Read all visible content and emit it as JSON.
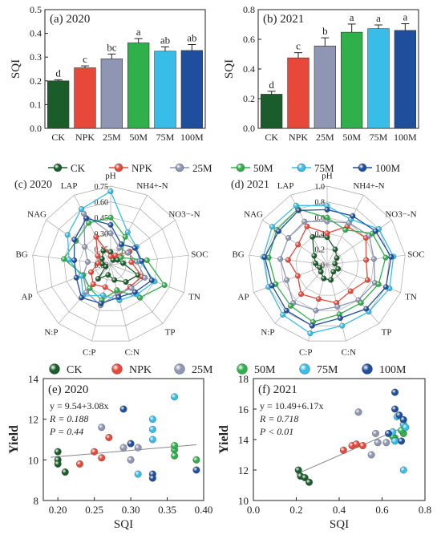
{
  "chart_data": [
    {
      "panel_label": "(a) 2020",
      "type": "bar",
      "ylabel": "SQI",
      "ylim": [
        0.0,
        0.5
      ],
      "yticks": [
        "0.0",
        "0.1",
        "0.2",
        "0.3",
        "0.4",
        "0.5"
      ],
      "categories": [
        "CK",
        "NPK",
        "25M",
        "50M",
        "75M",
        "100M"
      ],
      "values": [
        0.2,
        0.255,
        0.293,
        0.36,
        0.325,
        0.328
      ],
      "errors": [
        0.004,
        0.008,
        0.02,
        0.018,
        0.018,
        0.025
      ],
      "letters": [
        "d",
        "c",
        "bc",
        "a",
        "ab",
        "ab"
      ],
      "colors": [
        "#1a5c2a",
        "#e8483a",
        "#8e96b4",
        "#2fb04a",
        "#38bde8",
        "#1f4e9c"
      ]
    },
    {
      "panel_label": "(b) 2021",
      "type": "bar",
      "ylabel": "SQI",
      "ylim": [
        0.0,
        0.8
      ],
      "yticks": [
        "0.0",
        "0.2",
        "0.4",
        "0.6",
        "0.8"
      ],
      "categories": [
        "CK",
        "NPK",
        "25M",
        "50M",
        "75M",
        "100M"
      ],
      "values": [
        0.23,
        0.475,
        0.555,
        0.648,
        0.672,
        0.66
      ],
      "errors": [
        0.02,
        0.035,
        0.055,
        0.055,
        0.025,
        0.045
      ],
      "letters": [
        "d",
        "c",
        "b",
        "a",
        "a",
        "a"
      ],
      "colors": [
        "#1a5c2a",
        "#e8483a",
        "#8e96b4",
        "#2fb04a",
        "#38bde8",
        "#1f4e9c"
      ]
    },
    {
      "panel_label": "(c) 2020",
      "type": "radar",
      "axes": [
        "pH",
        "NH4+-N",
        "NO3−-N",
        "SOC",
        "TN",
        "TP",
        "C:N",
        "C:P",
        "N:P",
        "AP",
        "BG",
        "NAG",
        "LAP"
      ],
      "rlim": [
        0.0,
        0.75
      ],
      "rticks": [
        "0.00",
        "0.15",
        "0.30",
        "0.45",
        "0.60",
        "0.75"
      ],
      "series": [
        {
          "name": "CK",
          "color": "#1a5c2a",
          "values": [
            0.12,
            0.05,
            0.08,
            0.12,
            0.28,
            0.22,
            0.15,
            0.1,
            0.18,
            0.05,
            0.08,
            0.1,
            0.15
          ]
        },
        {
          "name": "NPK",
          "color": "#e8483a",
          "values": [
            0.08,
            0.1,
            0.22,
            0.2,
            0.32,
            0.28,
            0.3,
            0.22,
            0.25,
            0.2,
            0.12,
            0.15,
            0.3
          ]
        },
        {
          "name": "25M",
          "color": "#8e96b4",
          "values": [
            0.3,
            0.18,
            0.2,
            0.25,
            0.35,
            0.3,
            0.28,
            0.4,
            0.35,
            0.28,
            0.22,
            0.3,
            0.55
          ]
        },
        {
          "name": "50M",
          "color": "#2fb04a",
          "values": [
            0.45,
            0.3,
            0.12,
            0.35,
            0.55,
            0.42,
            0.25,
            0.35,
            0.3,
            0.28,
            0.45,
            0.4,
            0.45
          ]
        },
        {
          "name": "75M",
          "color": "#38bde8",
          "values": [
            0.7,
            0.35,
            0.3,
            0.28,
            0.45,
            0.38,
            0.35,
            0.3,
            0.4,
            0.3,
            0.4,
            0.5,
            0.6
          ]
        },
        {
          "name": "100M",
          "color": "#1f4e9c",
          "values": [
            0.38,
            0.22,
            0.28,
            0.3,
            0.42,
            0.35,
            0.32,
            0.38,
            0.42,
            0.35,
            0.35,
            0.42,
            0.5
          ]
        }
      ]
    },
    {
      "panel_label": "(d) 2021",
      "type": "radar",
      "axes": [
        "pH",
        "NH4+-N",
        "NO3−-N",
        "SOC",
        "TN",
        "TP",
        "C:N",
        "C:P",
        "N:P",
        "AP",
        "BG",
        "NAG",
        "LAP"
      ],
      "rlim": [
        0.0,
        1.0
      ],
      "rticks": [
        "0.0",
        "0.2",
        "0.4",
        "0.6",
        "0.8",
        "1.0"
      ],
      "series": [
        {
          "name": "CK",
          "color": "#1a5c2a",
          "values": [
            0.35,
            0.22,
            0.15,
            0.1,
            0.15,
            0.12,
            0.2,
            0.18,
            0.12,
            0.1,
            0.15,
            0.2,
            0.4
          ]
        },
        {
          "name": "NPK",
          "color": "#e8483a",
          "values": [
            0.4,
            0.55,
            0.6,
            0.5,
            0.55,
            0.45,
            0.5,
            0.45,
            0.5,
            0.4,
            0.5,
            0.45,
            0.55
          ]
        },
        {
          "name": "25M",
          "color": "#8e96b4",
          "values": [
            0.55,
            0.6,
            0.65,
            0.6,
            0.65,
            0.6,
            0.55,
            0.6,
            0.65,
            0.55,
            0.6,
            0.6,
            0.62
          ]
        },
        {
          "name": "50M",
          "color": "#2fb04a",
          "values": [
            0.6,
            0.5,
            0.7,
            0.75,
            0.7,
            0.65,
            0.65,
            0.75,
            0.7,
            0.7,
            0.75,
            0.78,
            0.8
          ]
        },
        {
          "name": "75M",
          "color": "#38bde8",
          "values": [
            0.75,
            0.65,
            0.8,
            0.85,
            0.85,
            0.8,
            0.8,
            0.9,
            0.85,
            0.8,
            0.82,
            0.85,
            0.85
          ]
        },
        {
          "name": "100M",
          "color": "#1f4e9c",
          "values": [
            0.7,
            0.7,
            0.75,
            0.82,
            0.8,
            0.75,
            0.7,
            0.8,
            0.78,
            0.75,
            0.8,
            0.75,
            0.78
          ]
        }
      ]
    },
    {
      "panel_label": "(e) 2020",
      "type": "scatter",
      "xlabel": "SQI",
      "ylabel": "Yield",
      "xlim": [
        0.18,
        0.4
      ],
      "ylim": [
        8,
        14
      ],
      "xticks": [
        "0.20",
        "0.25",
        "0.30",
        "0.35",
        "0.40"
      ],
      "yticks": [
        "8",
        "10",
        "12",
        "14"
      ],
      "fit": {
        "intercept": 9.54,
        "slope": 3.08,
        "x_range": [
          0.19,
          0.39
        ]
      },
      "stats": [
        "y = 9.54+3.08x",
        "R = 0.188",
        "P = 0.44"
      ],
      "series": [
        {
          "name": "CK",
          "color": "#1a5c2a",
          "points": [
            [
              0.2,
              10.4
            ],
            [
              0.2,
              10.0
            ],
            [
              0.2,
              9.8
            ],
            [
              0.21,
              9.4
            ]
          ]
        },
        {
          "name": "NPK",
          "color": "#e8483a",
          "points": [
            [
              0.23,
              9.8
            ],
            [
              0.25,
              10.4
            ],
            [
              0.26,
              10.1
            ],
            [
              0.27,
              11.1
            ]
          ]
        },
        {
          "name": "25M",
          "color": "#8e96b4",
          "points": [
            [
              0.26,
              11.6
            ],
            [
              0.29,
              10.6
            ],
            [
              0.3,
              10.0
            ],
            [
              0.31,
              10.6
            ]
          ]
        },
        {
          "name": "50M",
          "color": "#2fb04a",
          "points": [
            [
              0.36,
              10.2
            ],
            [
              0.36,
              10.5
            ],
            [
              0.39,
              10.0
            ],
            [
              0.36,
              10.7
            ]
          ]
        },
        {
          "name": "75M",
          "color": "#38bde8",
          "points": [
            [
              0.33,
              12.0
            ],
            [
              0.33,
              11.5
            ],
            [
              0.33,
              11.0
            ],
            [
              0.36,
              13.1
            ],
            [
              0.31,
              9.3
            ]
          ]
        },
        {
          "name": "100M",
          "color": "#1f4e9c",
          "points": [
            [
              0.29,
              12.5
            ],
            [
              0.3,
              10.8
            ],
            [
              0.33,
              9.3
            ],
            [
              0.33,
              9.1
            ],
            [
              0.39,
              9.5
            ]
          ]
        }
      ]
    },
    {
      "panel_label": "(f) 2021",
      "type": "scatter",
      "xlabel": "SQI",
      "ylabel": "Yield",
      "xlim": [
        0.0,
        0.8
      ],
      "ylim": [
        10,
        18
      ],
      "xticks": [
        "0.0",
        "0.2",
        "0.4",
        "0.6",
        "0.8"
      ],
      "yticks": [
        "10",
        "12",
        "14",
        "16",
        "18"
      ],
      "fit": {
        "intercept": 10.49,
        "slope": 6.17,
        "x_range": [
          0.2,
          0.72
        ]
      },
      "stats": [
        "y = 10.49+6.17x",
        "R = 0.718",
        "P < 0.01"
      ],
      "series": [
        {
          "name": "CK",
          "color": "#1a5c2a",
          "points": [
            [
              0.21,
              12.0
            ],
            [
              0.22,
              11.6
            ],
            [
              0.24,
              11.5
            ],
            [
              0.26,
              11.2
            ]
          ]
        },
        {
          "name": "NPK",
          "color": "#e8483a",
          "points": [
            [
              0.42,
              13.3
            ],
            [
              0.46,
              13.6
            ],
            [
              0.48,
              13.7
            ],
            [
              0.51,
              13.6
            ]
          ]
        },
        {
          "name": "25M",
          "color": "#8e96b4",
          "points": [
            [
              0.49,
              15.8
            ],
            [
              0.55,
              13.0
            ],
            [
              0.57,
              14.4
            ],
            [
              0.62,
              13.8
            ],
            [
              0.58,
              13.8
            ]
          ]
        },
        {
          "name": "50M",
          "color": "#2fb04a",
          "points": [
            [
              0.66,
              14.1
            ],
            [
              0.7,
              14.4
            ],
            [
              0.69,
              14.6
            ],
            [
              0.65,
              14.2
            ]
          ]
        },
        {
          "name": "75M",
          "color": "#38bde8",
          "points": [
            [
              0.65,
              14.5
            ],
            [
              0.67,
              15.5
            ],
            [
              0.7,
              15.0
            ],
            [
              0.71,
              14.8
            ],
            [
              0.7,
              12.0
            ],
            [
              0.66,
              13.9
            ]
          ]
        },
        {
          "name": "100M",
          "color": "#1f4e9c",
          "points": [
            [
              0.66,
              17.1
            ],
            [
              0.68,
              15.6
            ],
            [
              0.7,
              15.3
            ],
            [
              0.69,
              13.9
            ],
            [
              0.66,
              16.0
            ],
            [
              0.63,
              14.4
            ]
          ]
        }
      ]
    }
  ],
  "legend": {
    "entries": [
      "CK",
      "NPK",
      "25M",
      "50M",
      "75M",
      "100M"
    ],
    "colors": [
      "#1a5c2a",
      "#e8483a",
      "#8e96b4",
      "#2fb04a",
      "#38bde8",
      "#1f4e9c"
    ]
  }
}
